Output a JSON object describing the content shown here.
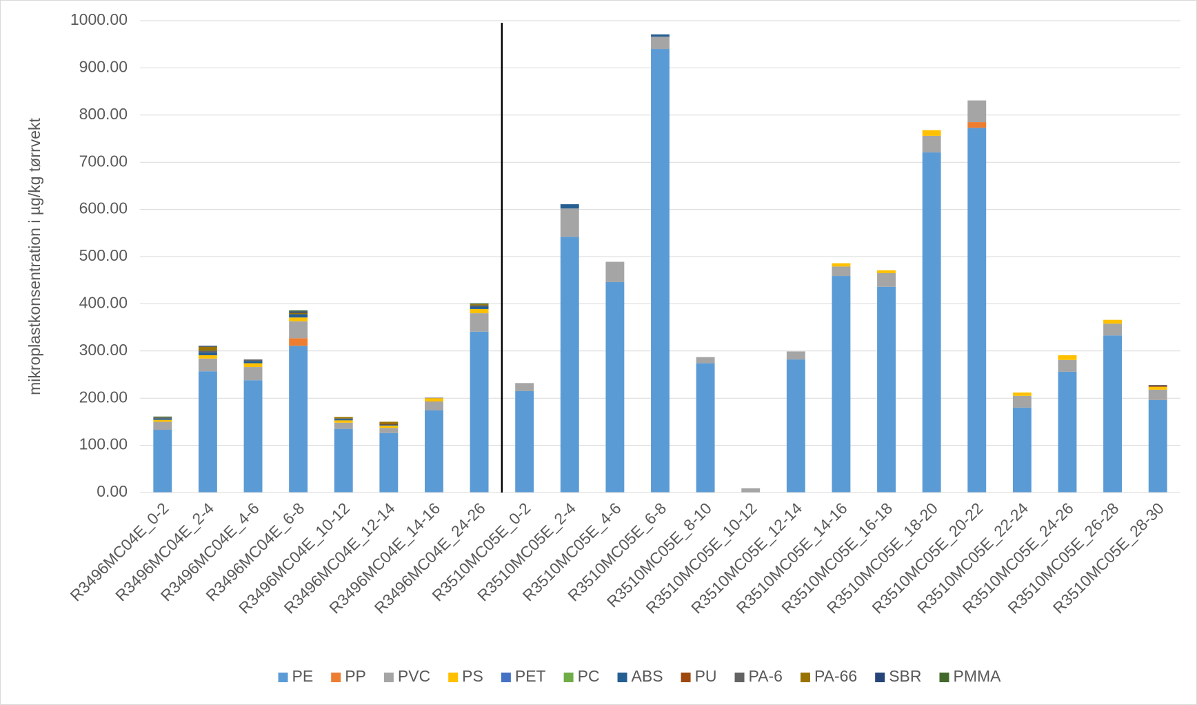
{
  "chart_data": {
    "type": "stacked_bar",
    "y_label": "mikroplastkonsentration  i µg/kg tørrvekt",
    "categories": [
      "R3496MC04E_0-2",
      "R3496MC04E_2-4",
      "R3496MC04E_4-6",
      "R3496MC04E_6-8",
      "R3496MC04E_10-12",
      "R3496MC04E_12-14",
      "R3496MC04E_14-16",
      "R3496MC04E_24-26",
      "R3510MC05E_0-2",
      "R3510MC05E_2-4",
      "R3510MC05E_4-6",
      "R3510MC05E_6-8",
      "R3510MC05E_8-10",
      "R3510MC05E_10-12",
      "R3510MC05E_12-14",
      "R3510MC05E_14-16",
      "R3510MC05E_16-18",
      "R3510MC05E_18-20",
      "R3510MC05E_20-22",
      "R3510MC05E_22-24",
      "R3510MC05E_24-26",
      "R3510MC05E_26-28",
      "R3510MC05E_28-30"
    ],
    "series": [
      {
        "name": "PE",
        "color": "#5b9bd5",
        "values": [
          133,
          257,
          238,
          311,
          135,
          126,
          174,
          341,
          215,
          542,
          446,
          940,
          274,
          0,
          282,
          459,
          436,
          721,
          773,
          180,
          256,
          333,
          196
        ]
      },
      {
        "name": "PP",
        "color": "#ed7d31",
        "values": [
          0,
          0,
          0,
          16,
          0,
          0,
          0,
          0,
          0,
          0,
          0,
          0,
          0,
          0,
          0,
          0,
          0,
          0,
          12,
          0,
          0,
          0,
          0
        ]
      },
      {
        "name": "PVC",
        "color": "#a5a5a5",
        "values": [
          17,
          27,
          28,
          36,
          13,
          11,
          19,
          39,
          17,
          60,
          43,
          26,
          13,
          9,
          17,
          20,
          29,
          35,
          46,
          25,
          25,
          25,
          22
        ]
      },
      {
        "name": "PS",
        "color": "#ffc000",
        "values": [
          4,
          7,
          8,
          8,
          5,
          5,
          7,
          9,
          0,
          0,
          0,
          0,
          0,
          0,
          0,
          7,
          6,
          12,
          0,
          7,
          10,
          8,
          6
        ]
      },
      {
        "name": "PET",
        "color": "#4472c4",
        "values": [
          0,
          0,
          0,
          0,
          0,
          0,
          0,
          0,
          0,
          0,
          0,
          0,
          0,
          0,
          0,
          0,
          0,
          0,
          0,
          0,
          0,
          0,
          0
        ]
      },
      {
        "name": "PC",
        "color": "#70ad47",
        "values": [
          0,
          0,
          0,
          0,
          0,
          0,
          0,
          0,
          0,
          0,
          0,
          0,
          0,
          0,
          0,
          0,
          0,
          0,
          0,
          0,
          0,
          0,
          0
        ]
      },
      {
        "name": "ABS",
        "color": "#255e91",
        "values": [
          3,
          6,
          5,
          7,
          3,
          2,
          0,
          5,
          0,
          9,
          0,
          5,
          0,
          0,
          0,
          0,
          0,
          0,
          0,
          0,
          0,
          0,
          0
        ]
      },
      {
        "name": "PU",
        "color": "#9e480e",
        "values": [
          0,
          0,
          0,
          0,
          0,
          2,
          0,
          0,
          0,
          0,
          0,
          0,
          0,
          0,
          0,
          0,
          0,
          0,
          0,
          0,
          0,
          0,
          2
        ]
      },
      {
        "name": "PA-6",
        "color": "#636363",
        "values": [
          2,
          4,
          3,
          0,
          1,
          0,
          1,
          3,
          0,
          0,
          0,
          0,
          0,
          0,
          0,
          0,
          0,
          0,
          0,
          0,
          0,
          0,
          2
        ]
      },
      {
        "name": "PA-66",
        "color": "#997300",
        "values": [
          0,
          8,
          0,
          3,
          3,
          4,
          0,
          2,
          0,
          0,
          0,
          0,
          0,
          0,
          0,
          0,
          0,
          0,
          0,
          0,
          0,
          0,
          0
        ]
      },
      {
        "name": "SBR",
        "color": "#264478",
        "values": [
          0,
          2,
          0,
          3,
          0,
          0,
          0,
          0,
          0,
          0,
          0,
          0,
          0,
          0,
          0,
          0,
          0,
          0,
          0,
          0,
          0,
          0,
          0
        ]
      },
      {
        "name": "PMMA",
        "color": "#43682b",
        "values": [
          2,
          0,
          0,
          2,
          0,
          0,
          0,
          2,
          0,
          0,
          0,
          0,
          0,
          0,
          0,
          0,
          0,
          0,
          0,
          0,
          0,
          0,
          0
        ]
      }
    ],
    "ylim": [
      0,
      1000
    ],
    "yticks": [
      {
        "value": 0,
        "label": "0.00"
      },
      {
        "value": 100,
        "label": "100.00"
      },
      {
        "value": 200,
        "label": "200.00"
      },
      {
        "value": 300,
        "label": "300.00"
      },
      {
        "value": 400,
        "label": "400.00"
      },
      {
        "value": 500,
        "label": "500.00"
      },
      {
        "value": 600,
        "label": "600.00"
      },
      {
        "value": 700,
        "label": "700.00"
      },
      {
        "value": 800,
        "label": "800.00"
      },
      {
        "value": 900,
        "label": "900.00"
      },
      {
        "value": 1000,
        "label": "1000.00"
      }
    ],
    "grid": true,
    "legend": "bottom"
  }
}
